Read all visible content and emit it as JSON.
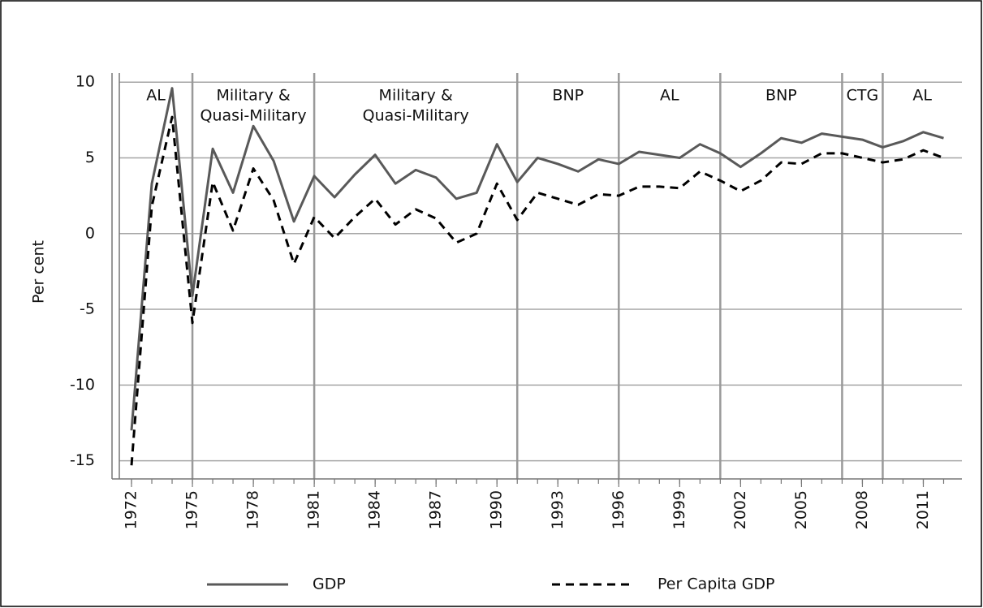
{
  "chart_data": {
    "type": "line",
    "ylabel": "Per cent",
    "x": [
      1972,
      1973,
      1974,
      1975,
      1976,
      1977,
      1978,
      1979,
      1980,
      1981,
      1982,
      1983,
      1984,
      1985,
      1986,
      1987,
      1988,
      1989,
      1990,
      1991,
      1992,
      1993,
      1994,
      1995,
      1996,
      1997,
      1998,
      1999,
      2000,
      2001,
      2002,
      2003,
      2004,
      2005,
      2006,
      2007,
      2008,
      2009,
      2010,
      2011,
      2012
    ],
    "series": [
      {
        "name": "GDP",
        "color": "#595959",
        "dash": false,
        "values": [
          -13,
          3.3,
          9.6,
          -4.1,
          5.6,
          2.7,
          7.1,
          4.8,
          0.8,
          3.8,
          2.4,
          3.9,
          5.2,
          3.3,
          4.2,
          3.7,
          2.3,
          2.7,
          5.9,
          3.4,
          5.0,
          4.6,
          4.1,
          4.9,
          4.6,
          5.4,
          5.2,
          5.0,
          5.9,
          5.3,
          4.4,
          5.3,
          6.3,
          6.0,
          6.6,
          6.4,
          6.2,
          5.7,
          6.1,
          6.7,
          6.3
        ]
      },
      {
        "name": "Per Capita GDP",
        "color": "#000000",
        "dash": true,
        "values": [
          -15.3,
          1.8,
          7.7,
          -5.9,
          3.4,
          0.2,
          4.3,
          2.2,
          -2.0,
          1.1,
          -0.3,
          1.1,
          2.3,
          0.6,
          1.6,
          1.0,
          -0.6,
          0.0,
          3.3,
          0.9,
          2.7,
          2.3,
          1.9,
          2.6,
          2.5,
          3.1,
          3.1,
          3.0,
          4.1,
          3.5,
          2.8,
          3.5,
          4.7,
          4.6,
          5.3,
          5.3,
          5.0,
          4.7,
          4.9,
          5.5,
          5.0
        ]
      }
    ],
    "xlim": [
      1971.4,
      2012.9
    ],
    "ylim": [
      -16.2,
      10.6
    ],
    "xticks": [
      1972,
      1975,
      1978,
      1981,
      1984,
      1987,
      1990,
      1993,
      1996,
      1999,
      2002,
      2005,
      2008,
      2011
    ],
    "yticks": [
      -15,
      -10,
      -5,
      0,
      5,
      10
    ],
    "grid": true,
    "dividers": [
      1975,
      1981,
      1991,
      1996,
      2001,
      2007,
      2009
    ],
    "periods": [
      [
        "AL"
      ],
      [
        "Military &",
        "Quasi-Military"
      ],
      [
        "Military &",
        "Quasi-Military"
      ],
      [
        "BNP"
      ],
      [
        "AL"
      ],
      [
        "BNP"
      ],
      [
        "CTG"
      ],
      [
        "AL"
      ]
    ],
    "legend": "bottom"
  }
}
